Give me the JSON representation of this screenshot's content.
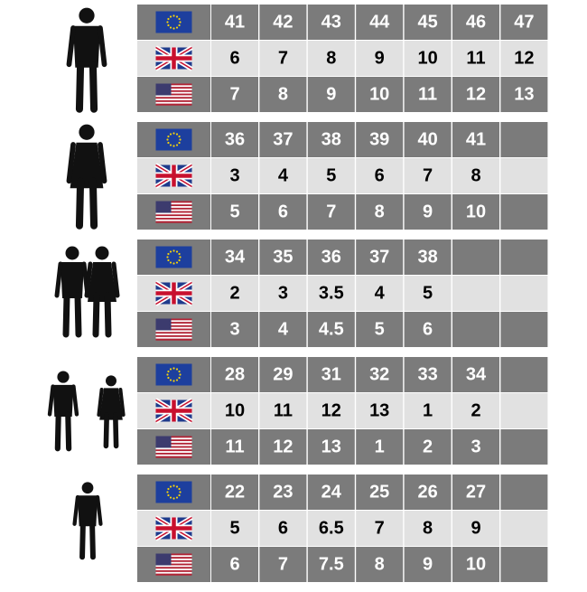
{
  "table": {
    "groups": [
      {
        "rows": [
          {
            "cells": [
              41,
              42,
              43,
              44,
              45,
              46,
              47
            ]
          },
          {
            "cells": [
              6,
              7,
              8,
              9,
              10,
              11,
              12
            ]
          },
          {
            "cells": [
              7,
              8,
              9,
              10,
              11,
              12,
              13
            ]
          }
        ]
      },
      {
        "rows": [
          {
            "cells": [
              36,
              37,
              38,
              39,
              40,
              41
            ]
          },
          {
            "cells": [
              3,
              4,
              5,
              6,
              7,
              8
            ]
          },
          {
            "cells": [
              5,
              6,
              7,
              8,
              9,
              10
            ]
          }
        ]
      },
      {
        "rows": [
          {
            "cells": [
              34,
              35,
              36,
              37,
              38
            ]
          },
          {
            "cells": [
              2,
              3,
              3.5,
              4,
              5
            ]
          },
          {
            "cells": [
              3,
              4,
              4.5,
              5,
              6
            ]
          }
        ]
      },
      {
        "rows": [
          {
            "cells": [
              28,
              29,
              31,
              32,
              33,
              34
            ]
          },
          {
            "cells": [
              10,
              11,
              12,
              13,
              1,
              2
            ]
          },
          {
            "cells": [
              11,
              12,
              13,
              1,
              2,
              3
            ]
          }
        ]
      },
      {
        "rows": [
          {
            "cells": [
              22,
              23,
              24,
              25,
              26,
              27
            ]
          },
          {
            "cells": [
              5,
              6,
              6.5,
              7,
              8,
              9
            ]
          },
          {
            "cells": [
              6,
              7,
              7.5,
              8,
              9,
              10
            ]
          }
        ]
      }
    ]
  }
}
